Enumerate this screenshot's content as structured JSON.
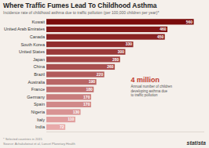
{
  "chart_data": {
    "type": "bar",
    "orientation": "horizontal",
    "title": "Where Traffic Fumes Lead To Childhood Asthma",
    "subtitle": "Incidence rate of childhood asthma due to traffic pollution (per 100,000 children per year)*",
    "categories": [
      "India",
      "Italy",
      "Nigeria",
      "Spain",
      "Germany",
      "France",
      "Australia",
      "Brazil",
      "China",
      "Japan",
      "United States",
      "South Korea",
      "Canada",
      "United Arab Emirates",
      "Kuwait"
    ],
    "values": [
      72,
      110,
      130,
      170,
      170,
      180,
      190,
      220,
      260,
      280,
      300,
      330,
      450,
      460,
      560
    ],
    "colors": [
      "#e8aaaa",
      "#e09e9e",
      "#d89393",
      "#d08888",
      "#c87c7c",
      "#c07171",
      "#b86666",
      "#b15b5b",
      "#a94f4f",
      "#a14444",
      "#993939",
      "#912d2d",
      "#892222",
      "#811717",
      "#7a0c0c"
    ],
    "xlim": [
      0,
      600
    ],
    "data_labels": true,
    "tick_labels": "y",
    "grid": false,
    "annotations": [
      "4 million",
      "Annual number of children\ndeveloping asthma due\nto traffic pollution",
      "* Selected countries in 2015\nSource: Achakulwisut et al, Lancet Planetary Health",
      "statista"
    ]
  }
}
